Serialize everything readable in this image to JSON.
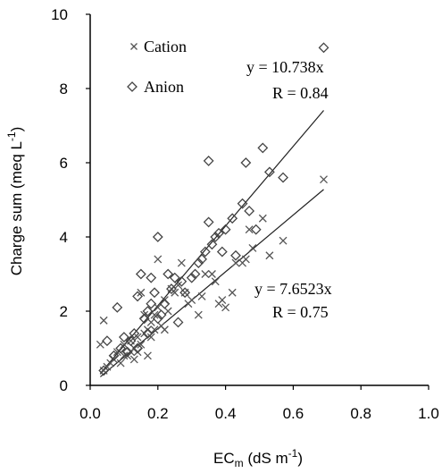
{
  "chart_data": {
    "type": "scatter",
    "xlabel": {
      "main": "EC",
      "sub": "m",
      "rest": " (dS m",
      "sup": "-1",
      "close": ")"
    },
    "ylabel": {
      "main": "Charge sum  (meq  L",
      "sup": "-1",
      "close": ")"
    },
    "xlim": [
      0.0,
      1.0
    ],
    "ylim": [
      0,
      10
    ],
    "xticks": [
      "0.0",
      "0.2",
      "0.4",
      "0.6",
      "0.8",
      "1.0"
    ],
    "yticks": [
      "0",
      "2",
      "4",
      "6",
      "8",
      "10"
    ],
    "grid": false,
    "legend_position": "top-left",
    "series": [
      {
        "name": "Cation",
        "marker": "cross",
        "slope": 7.6523,
        "equation": "y = 7.6523x",
        "r2_label": "R",
        "r2_value": " = 0.75",
        "fit_range": [
          0.03,
          0.69
        ],
        "points": [
          [
            0.03,
            1.1
          ],
          [
            0.04,
            1.75
          ],
          [
            0.04,
            0.4
          ],
          [
            0.05,
            0.5
          ],
          [
            0.06,
            0.6
          ],
          [
            0.07,
            0.7
          ],
          [
            0.08,
            0.9
          ],
          [
            0.09,
            0.6
          ],
          [
            0.1,
            0.8
          ],
          [
            0.1,
            1.1
          ],
          [
            0.11,
            0.8
          ],
          [
            0.12,
            0.9
          ],
          [
            0.12,
            1.2
          ],
          [
            0.13,
            0.7
          ],
          [
            0.13,
            1.0
          ],
          [
            0.14,
            1.3
          ],
          [
            0.14,
            0.9
          ],
          [
            0.15,
            1.1
          ],
          [
            0.15,
            2.5
          ],
          [
            0.16,
            1.9
          ],
          [
            0.16,
            1.4
          ],
          [
            0.17,
            1.5
          ],
          [
            0.17,
            0.8
          ],
          [
            0.18,
            1.3
          ],
          [
            0.18,
            1.7
          ],
          [
            0.19,
            1.9
          ],
          [
            0.19,
            1.5
          ],
          [
            0.2,
            2.1
          ],
          [
            0.2,
            3.4
          ],
          [
            0.21,
            1.6
          ],
          [
            0.22,
            2.3
          ],
          [
            0.22,
            1.5
          ],
          [
            0.23,
            2.0
          ],
          [
            0.24,
            2.6
          ],
          [
            0.25,
            2.5
          ],
          [
            0.26,
            2.7
          ],
          [
            0.27,
            3.3
          ],
          [
            0.28,
            2.5
          ],
          [
            0.29,
            2.2
          ],
          [
            0.3,
            2.3
          ],
          [
            0.32,
            1.9
          ],
          [
            0.33,
            2.4
          ],
          [
            0.34,
            3.0
          ],
          [
            0.36,
            3.0
          ],
          [
            0.37,
            2.8
          ],
          [
            0.38,
            2.2
          ],
          [
            0.39,
            2.3
          ],
          [
            0.4,
            2.1
          ],
          [
            0.42,
            2.5
          ],
          [
            0.43,
            3.3
          ],
          [
            0.45,
            3.3
          ],
          [
            0.46,
            3.4
          ],
          [
            0.47,
            4.2
          ],
          [
            0.48,
            3.7
          ],
          [
            0.51,
            4.5
          ],
          [
            0.53,
            3.5
          ],
          [
            0.57,
            3.9
          ],
          [
            0.69,
            5.55
          ]
        ]
      },
      {
        "name": "Anion",
        "marker": "diamond",
        "slope": 10.738,
        "equation": "y = 10.738x",
        "r2_label": "R",
        "r2_value": " = 0.84",
        "fit_range": [
          0.03,
          0.69
        ],
        "points": [
          [
            0.04,
            0.4
          ],
          [
            0.05,
            1.2
          ],
          [
            0.07,
            0.8
          ],
          [
            0.08,
            2.1
          ],
          [
            0.09,
            1.0
          ],
          [
            0.1,
            1.3
          ],
          [
            0.11,
            0.9
          ],
          [
            0.12,
            1.2
          ],
          [
            0.13,
            1.4
          ],
          [
            0.14,
            2.4
          ],
          [
            0.14,
            1.0
          ],
          [
            0.15,
            3.0
          ],
          [
            0.16,
            1.8
          ],
          [
            0.17,
            2.0
          ],
          [
            0.17,
            1.4
          ],
          [
            0.18,
            2.9
          ],
          [
            0.18,
            2.2
          ],
          [
            0.19,
            2.5
          ],
          [
            0.2,
            4.0
          ],
          [
            0.2,
            1.8
          ],
          [
            0.21,
            1.9
          ],
          [
            0.22,
            2.2
          ],
          [
            0.23,
            3.0
          ],
          [
            0.24,
            2.6
          ],
          [
            0.25,
            2.9
          ],
          [
            0.26,
            1.7
          ],
          [
            0.27,
            2.8
          ],
          [
            0.28,
            2.5
          ],
          [
            0.3,
            2.9
          ],
          [
            0.31,
            3.0
          ],
          [
            0.32,
            3.3
          ],
          [
            0.33,
            3.4
          ],
          [
            0.34,
            3.6
          ],
          [
            0.35,
            6.05
          ],
          [
            0.35,
            4.4
          ],
          [
            0.36,
            3.8
          ],
          [
            0.37,
            4.0
          ],
          [
            0.38,
            4.1
          ],
          [
            0.39,
            3.6
          ],
          [
            0.4,
            4.2
          ],
          [
            0.42,
            4.5
          ],
          [
            0.43,
            3.5
          ],
          [
            0.45,
            4.9
          ],
          [
            0.46,
            6.0
          ],
          [
            0.47,
            4.7
          ],
          [
            0.49,
            4.2
          ],
          [
            0.51,
            6.4
          ],
          [
            0.53,
            5.75
          ],
          [
            0.57,
            5.6
          ],
          [
            0.69,
            9.1
          ]
        ]
      }
    ]
  }
}
